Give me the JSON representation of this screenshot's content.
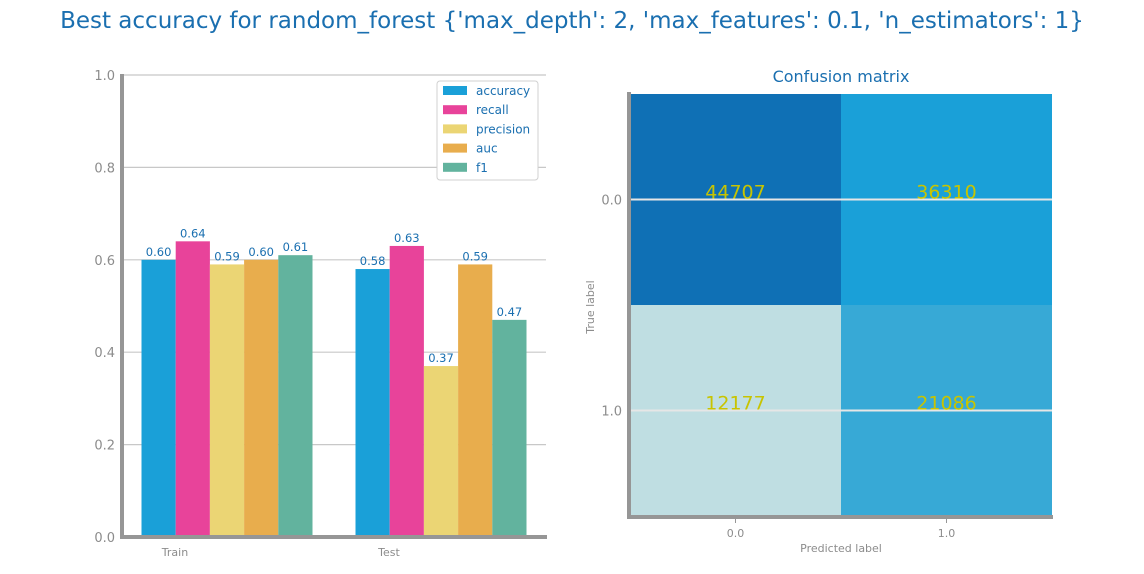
{
  "suptitle": "Best accuracy for random_forest {'max_depth': 2, 'max_features': 0.1, 'n_estimators': 1}",
  "colors": {
    "accuracy": "#1aa0d8",
    "recall": "#e8439a",
    "precision": "#ebd574",
    "auc": "#e8ad4d",
    "f1": "#62b39e",
    "axis": "#969696",
    "grid": "#c8c8c8",
    "text": "#1a6fb0",
    "cm_high": "#0f70b5",
    "cm_mid": "#1aa0d8",
    "cm_lowmid": "#37a9d6",
    "cm_low": "#bfdee2",
    "cm_value": "#c8c400"
  },
  "chart_data": [
    {
      "type": "bar",
      "title": "",
      "categories": [
        "Train",
        "Test"
      ],
      "series": [
        {
          "name": "accuracy",
          "values": [
            0.6,
            0.58
          ]
        },
        {
          "name": "recall",
          "values": [
            0.64,
            0.63
          ]
        },
        {
          "name": "precision",
          "values": [
            0.59,
            0.37
          ]
        },
        {
          "name": "auc",
          "values": [
            0.6,
            0.59
          ]
        },
        {
          "name": "f1",
          "values": [
            0.61,
            0.47
          ]
        }
      ],
      "value_labels": [
        [
          "0.60",
          "0.58"
        ],
        [
          "0.64",
          "0.63"
        ],
        [
          "0.59",
          "0.37"
        ],
        [
          "0.60",
          "0.59"
        ],
        [
          "0.61",
          "0.47"
        ]
      ],
      "ylim": [
        0,
        1.0
      ],
      "yticks": [
        "0.0",
        "0.2",
        "0.4",
        "0.6",
        "0.8",
        "1.0"
      ],
      "xlabel": "",
      "ylabel": "",
      "grid": "y",
      "legend": "top-right"
    },
    {
      "type": "heatmap",
      "title": "Confusion matrix",
      "xlabel": "Predicted label",
      "ylabel": "True label",
      "x_ticks": [
        "0.0",
        "1.0"
      ],
      "y_ticks": [
        "0.0",
        "1.0"
      ],
      "values": [
        [
          44707,
          36310
        ],
        [
          12177,
          21086
        ]
      ]
    }
  ]
}
